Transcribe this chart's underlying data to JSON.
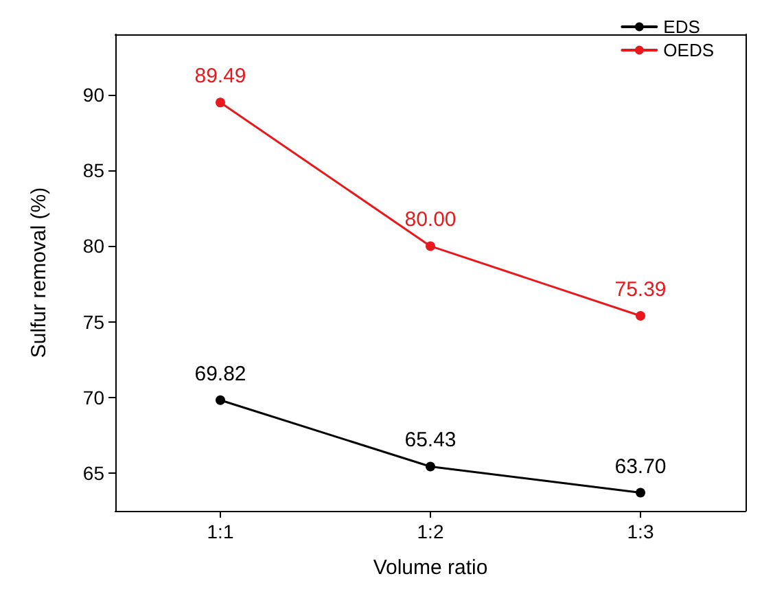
{
  "chart_data": {
    "type": "line",
    "xlabel": "Volume ratio",
    "ylabel": "Sulfur removal (%)",
    "categories": [
      "1:1",
      "1:2",
      "1:3"
    ],
    "series": [
      {
        "name": "EDS",
        "color": "#000000",
        "values": [
          69.82,
          65.43,
          63.7
        ],
        "value_labels": [
          "69.82",
          "65.43",
          "63.70"
        ]
      },
      {
        "name": "OEDS",
        "color": "#e8191c",
        "values": [
          89.49,
          80.0,
          75.39
        ],
        "value_labels": [
          "89.49",
          "80.00",
          "75.39"
        ]
      }
    ],
    "ylim": [
      62.5,
      94
    ],
    "yticks": [
      65,
      70,
      75,
      80,
      85,
      90
    ],
    "legend": "top right",
    "marker": "circle",
    "line_style": "solid",
    "grid": false
  }
}
